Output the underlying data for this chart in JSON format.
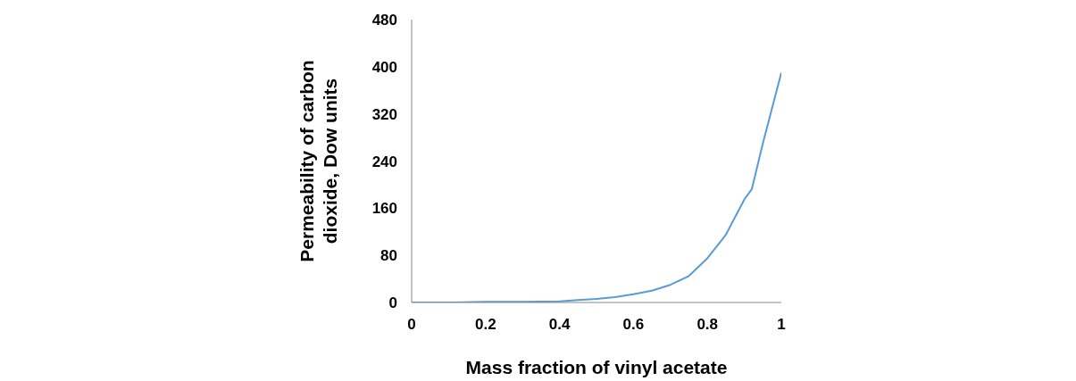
{
  "chart_data": {
    "type": "line",
    "xlabel": "Mass fraction of vinyl acetate",
    "ylabel": "Permeability of carbon dioxide, Dow units",
    "x": [
      0,
      0.1,
      0.2,
      0.3,
      0.4,
      0.45,
      0.5,
      0.55,
      0.6,
      0.65,
      0.7,
      0.75,
      0.8,
      0.85,
      0.9,
      0.92,
      0.95,
      1
    ],
    "series": [
      {
        "color": "#5b9bd5",
        "values": [
          0,
          0,
          1,
          1,
          2,
          4,
          6,
          9,
          14,
          20,
          30,
          45,
          75,
          115,
          175,
          192,
          270,
          390
        ]
      }
    ],
    "xlim": [
      0,
      1
    ],
    "ylim": [
      0,
      480
    ],
    "xticks": [
      0,
      0.2,
      0.4,
      0.6,
      0.8,
      1
    ],
    "yticks": [
      0,
      80,
      160,
      240,
      320,
      400,
      480
    ],
    "grid": false,
    "legend": false,
    "marker": "none",
    "line_style": "solid"
  }
}
